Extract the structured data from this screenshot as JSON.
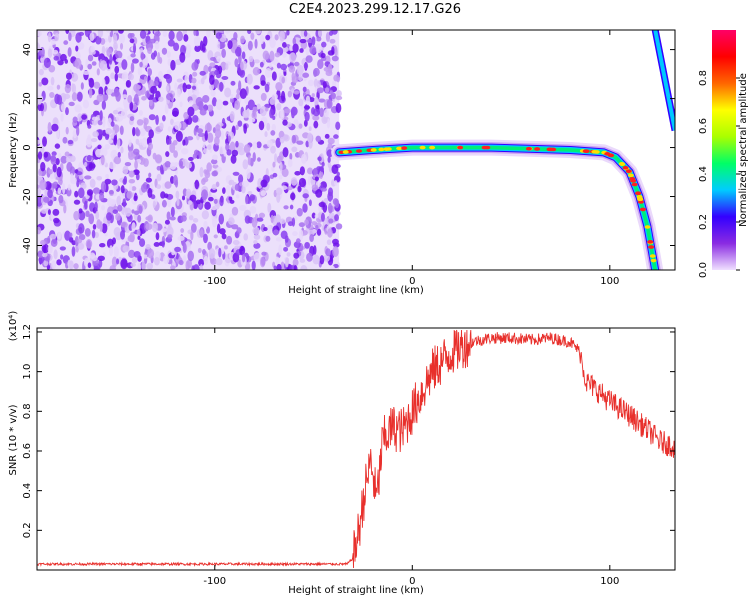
{
  "chart_data": [
    {
      "type": "heatmap",
      "title": "C2E4.2023.299.12.17.G26",
      "xlabel": "Height of straight line (km)",
      "ylabel": "Frequency (Hz)",
      "xlim": [
        -190,
        133
      ],
      "ylim": [
        -50,
        48
      ],
      "xticks": [
        -100,
        0,
        100
      ],
      "yticks": [
        -40,
        -20,
        0,
        20,
        40
      ],
      "colorbar": {
        "label": "Normalized spectral amplitude",
        "range": [
          0,
          1
        ],
        "ticks": [
          0.0,
          0.2,
          0.4,
          0.6,
          0.8
        ],
        "colors": [
          "#f0e0ff",
          "#8a2be2",
          "#3300ff",
          "#00ccff",
          "#00ff66",
          "#aaff00",
          "#ffff00",
          "#ff6600",
          "#ff0000",
          "#ff0066"
        ]
      },
      "noise_region": {
        "x_range": [
          -190,
          -37
        ],
        "note_amplitude": "low (~0.1-0.2)"
      },
      "ridge": [
        {
          "x": -37,
          "y": -2
        },
        {
          "x": -20,
          "y": -1
        },
        {
          "x": 0,
          "y": 0
        },
        {
          "x": 40,
          "y": 0
        },
        {
          "x": 80,
          "y": -1
        },
        {
          "x": 97,
          "y": -2
        },
        {
          "x": 103,
          "y": -4
        },
        {
          "x": 110,
          "y": -10
        },
        {
          "x": 115,
          "y": -20
        },
        {
          "x": 119,
          "y": -32
        },
        {
          "x": 123,
          "y": -50
        }
      ],
      "upper_ridge": [
        {
          "x": 123,
          "y": 48
        },
        {
          "x": 133,
          "y": 7
        }
      ],
      "grid": false
    },
    {
      "type": "line",
      "xlabel": "Height of straight line (km)",
      "ylabel": "SNR (10 * v/v)",
      "y_multiplier": "(x10⁴)",
      "xlim": [
        -190,
        133
      ],
      "ylim": [
        0,
        1.22
      ],
      "xticks": [
        -100,
        0,
        100
      ],
      "yticks": [
        0.2,
        0.4,
        0.6,
        0.8,
        1.0,
        1.2
      ],
      "color": "#e8302c",
      "x": [
        -190,
        -150,
        -100,
        -50,
        -38,
        -33,
        -30,
        -27,
        -24,
        -21,
        -18,
        -15,
        -10,
        -5,
        0,
        5,
        10,
        15,
        20,
        25,
        30,
        40,
        50,
        60,
        70,
        80,
        85,
        88,
        92,
        100,
        110,
        120,
        125,
        133
      ],
      "values": [
        0.03,
        0.03,
        0.03,
        0.03,
        0.03,
        0.03,
        0.06,
        0.2,
        0.4,
        0.55,
        0.35,
        0.65,
        0.72,
        0.7,
        0.8,
        0.9,
        1.0,
        1.05,
        1.1,
        1.13,
        1.15,
        1.17,
        1.17,
        1.16,
        1.17,
        1.15,
        1.1,
        0.95,
        0.92,
        0.85,
        0.78,
        0.7,
        0.65,
        0.62
      ],
      "grid": false
    }
  ]
}
